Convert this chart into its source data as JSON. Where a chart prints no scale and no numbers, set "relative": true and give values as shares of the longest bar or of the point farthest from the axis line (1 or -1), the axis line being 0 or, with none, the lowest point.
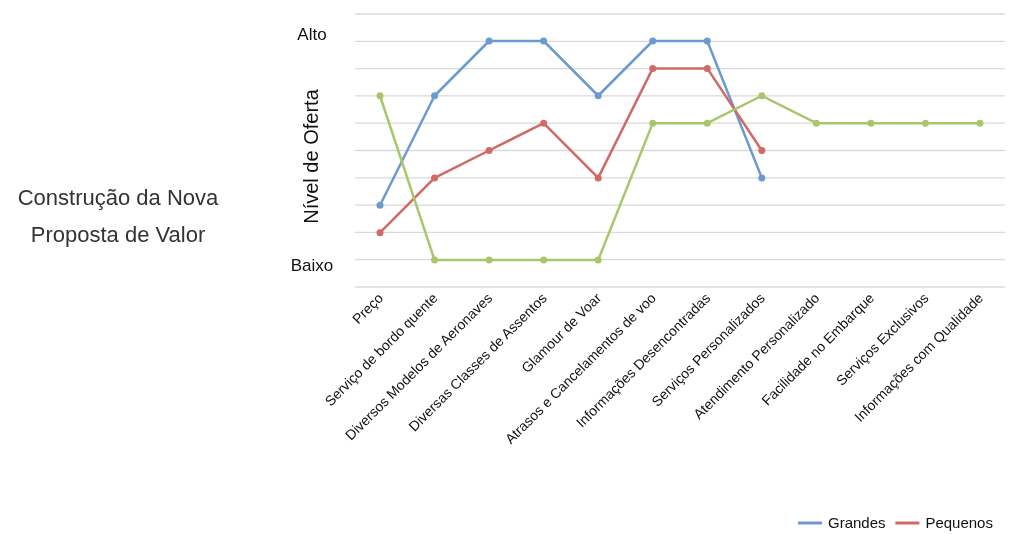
{
  "chart_data": {
    "type": "line",
    "title": "Construção da Nova Proposta de Valor",
    "ylabel": "Nível de Oferta",
    "categories": [
      "Preço",
      "Serviço de bordo quente",
      "Diversos Modelos de Aeronaves",
      "Diversas Classes de Assentos",
      "Glamour de Voar",
      "Atrasos e Cancelamentos de voo",
      "Informações Desencontradas",
      "Serviços Personalizados",
      "Atendimento Personalizado",
      "Facilidade no Embarque",
      "Serviços Exclusivos",
      "Informações com Qualidade"
    ],
    "series": [
      {
        "name": "Grandes",
        "color": "#6a9ad0",
        "values": [
          0.25,
          0.75,
          1,
          1,
          0.75,
          1,
          1,
          0.375,
          null,
          null,
          null,
          null
        ]
      },
      {
        "name": "Pequenos",
        "color": "#d06a66",
        "values": [
          0.125,
          0.375,
          0.5,
          0.625,
          0.375,
          0.875,
          0.875,
          0.5,
          null,
          null,
          null,
          null
        ]
      },
      {
        "color": "#a9c76a",
        "values": [
          0.75,
          0,
          0,
          0,
          0,
          0.625,
          0.625,
          0.75,
          0.625,
          0.625,
          0.625,
          0.625
        ]
      }
    ],
    "relative": true,
    "annotations": [
      "Alto",
      "Baixo"
    ],
    "grid": "y",
    "legend": "bottom right",
    "marker": "circle",
    "line_style": "solid"
  }
}
